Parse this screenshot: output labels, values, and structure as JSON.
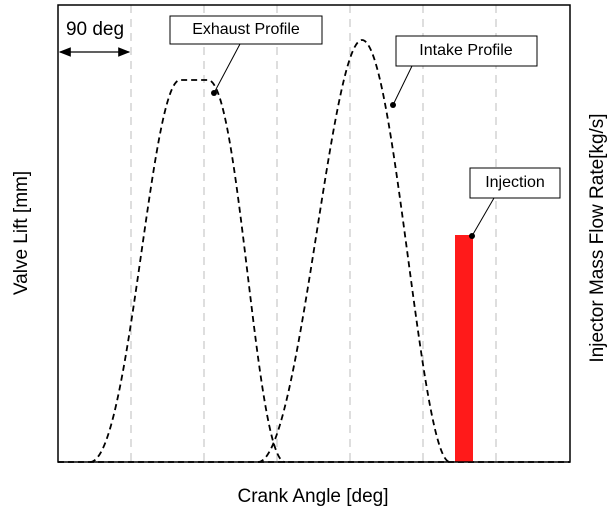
{
  "x_axis_label": "Crank Angle [deg]",
  "y_axis_label": "Valve Lift [mm]",
  "y2_axis_label": "Injector Mass Flow Rate[kg/s]",
  "annotations": {
    "reference": "90 deg",
    "exhaust": "Exhaust Profile",
    "intake": "Intake Profile",
    "injection": "Injection"
  }
}
